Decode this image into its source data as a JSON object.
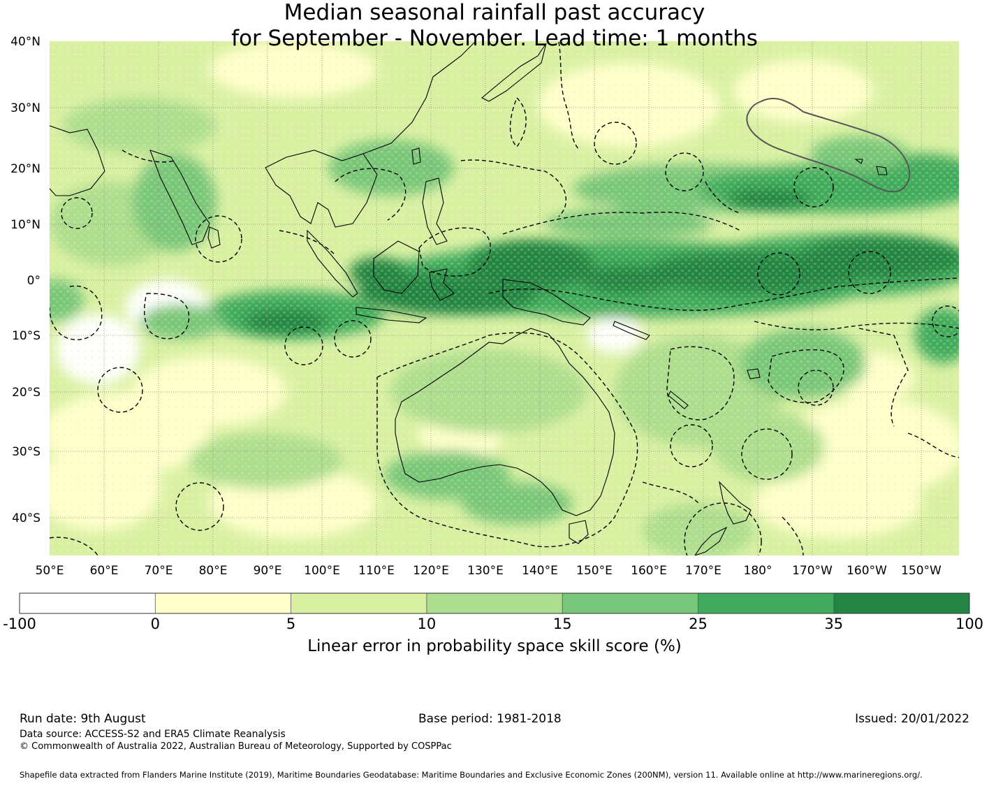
{
  "title": {
    "line1": "Median seasonal rainfall past accuracy",
    "line2": "for September - November. Lead time: 1 months"
  },
  "map": {
    "lat_labels": [
      "40°N",
      "30°N",
      "20°N",
      "10°N",
      "0°",
      "10°S",
      "20°S",
      "30°S",
      "40°S"
    ],
    "lon_labels": [
      "50°E",
      "60°E",
      "70°E",
      "80°E",
      "90°E",
      "100°E",
      "110°E",
      "120°E",
      "130°E",
      "140°E",
      "150°E",
      "160°E",
      "170°E",
      "180°",
      "170°W",
      "160°W",
      "150°W"
    ],
    "boundaries_style": "dashed black lines (maritime EEZ boundaries)",
    "highlight_region_style": "solid grey outline"
  },
  "colorbar": {
    "ticks": [
      "-100",
      "0",
      "5",
      "10",
      "15",
      "25",
      "35",
      "100"
    ],
    "colors": [
      "#ffffff",
      "#ffffcc",
      "#d9f0a3",
      "#addd8e",
      "#78c679",
      "#41ab5d",
      "#238443"
    ],
    "label": "Linear error in probability space skill score (%)"
  },
  "footer": {
    "run_date": "Run date: 9th August",
    "base_period": "Base period: 1981-2018",
    "issued": "Issued: 20/01/2022",
    "data_source": "Data source: ACCESS-S2 and ERA5 Climate Reanalysis",
    "copyright": "© Commonwealth of Australia 2022, Australian Bureau of Meteorology, Supported by COSPPac",
    "shapefile": "Shapefile data extracted from Flanders Marine Institute (2019), Maritime Boundaries Geodatabase: Maritime Boundaries and Exclusive Economic Zones (200NM), version 11. Available online at http://www.marineregions.org/."
  }
}
